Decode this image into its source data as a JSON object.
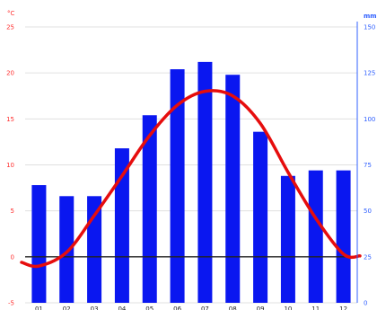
{
  "chart_data": {
    "type": "bar",
    "categories": [
      "01",
      "02",
      "03",
      "04",
      "05",
      "06",
      "07",
      "08",
      "09",
      "10",
      "11",
      "12"
    ],
    "series": [
      {
        "type": "bar",
        "axis": "right",
        "color": "#0a17f0",
        "values": [
          64,
          58,
          58,
          84,
          102,
          127,
          131,
          124,
          93,
          69,
          72,
          72
        ]
      },
      {
        "type": "line",
        "axis": "left",
        "color": "#e60d0d",
        "values": [
          -1.0,
          0.5,
          4.5,
          8.8,
          13.2,
          16.5,
          18.0,
          17.5,
          14.5,
          9.2,
          4.2,
          0.3
        ]
      }
    ],
    "y_left": {
      "unit": "°C",
      "ticks": [
        "-5",
        "0",
        "5",
        "10",
        "15",
        "20",
        "25"
      ],
      "range": [
        -5,
        25
      ]
    },
    "y_right": {
      "unit": "mm",
      "ticks": [
        "0",
        "25",
        "50",
        "75",
        "100",
        "125",
        "150"
      ],
      "range": [
        0,
        150
      ]
    },
    "grid": true,
    "colors": {
      "temp_axis": "#ff3030",
      "precip_axis": "#3060ff",
      "grid": "#e0e0e0",
      "zero_line": "#222222"
    }
  }
}
